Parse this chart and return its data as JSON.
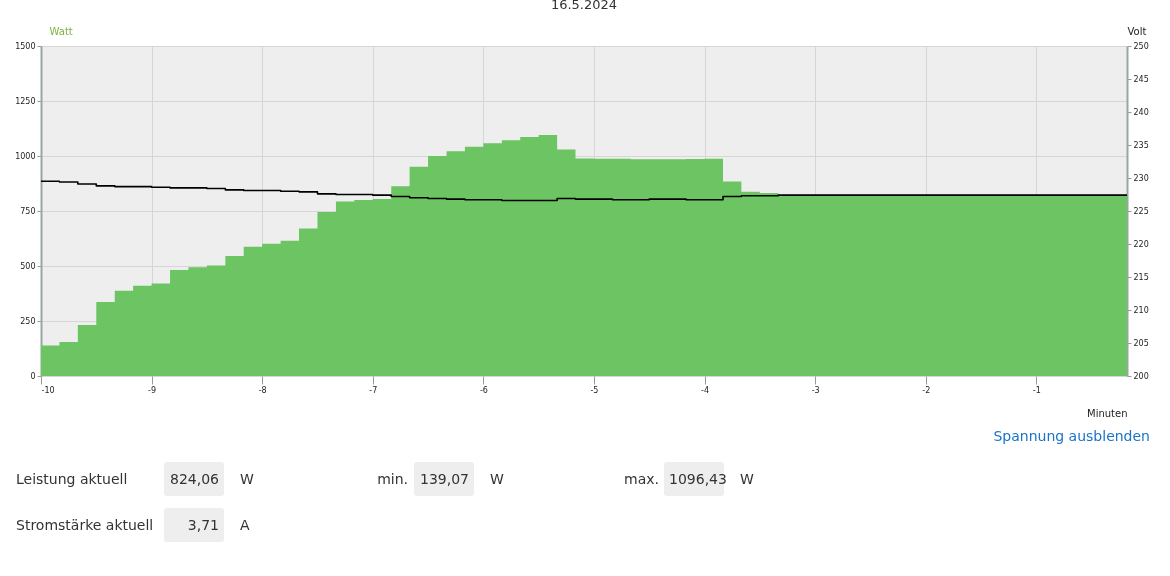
{
  "chart_data": {
    "type": "area",
    "title": "16.5.2024",
    "xlabel": "Minuten",
    "ylabel": "Watt",
    "y2label": "Volt",
    "x": [
      -10,
      -9.833,
      -9.667,
      -9.5,
      -9.333,
      -9.167,
      -9,
      -8.833,
      -8.667,
      -8.5,
      -8.333,
      -8.167,
      -8,
      -7.833,
      -7.667,
      -7.5,
      -7.333,
      -7.167,
      -7,
      -6.833,
      -6.667,
      -6.5,
      -6.333,
      -6.167,
      -6,
      -5.833,
      -5.667,
      -5.5,
      -5.333,
      -5.167,
      -5,
      -4.833,
      -4.667,
      -4.5,
      -4.333,
      -4.167,
      -4,
      -3.833,
      -3.667,
      -3.5,
      -3.333,
      -3.167,
      -3,
      -2.833,
      -2.667,
      -2.5,
      -2.333,
      -2.167,
      -2,
      -1.833,
      -1.667,
      -1.5,
      -1.333,
      -1.167,
      -1,
      -0.833,
      -0.667,
      -0.5,
      -0.333,
      -0.18
    ],
    "series": [
      {
        "color": "#6cc462",
        "values": [
          139,
          155,
          232,
          336,
          388,
          410,
          421,
          482,
          494,
          502,
          545,
          588,
          601,
          615,
          670,
          745,
          793,
          800,
          804,
          862,
          951,
          1000,
          1022,
          1042,
          1058,
          1072,
          1086,
          1096,
          1030,
          989,
          988,
          987,
          985,
          985,
          985,
          986,
          987,
          884,
          837,
          832,
          824,
          824,
          824,
          824,
          824,
          824,
          824,
          824,
          824,
          824,
          824,
          824,
          824,
          824,
          824,
          824,
          824,
          824,
          824,
          824
        ]
      },
      {
        "type": "step",
        "axis": "y2",
        "color": "#000000",
        "values": [
          229.5,
          229.4,
          229.1,
          228.8,
          228.7,
          228.7,
          228.6,
          228.5,
          228.5,
          228.4,
          228.2,
          228.1,
          228.1,
          228.0,
          227.9,
          227.6,
          227.5,
          227.5,
          227.4,
          227.2,
          227.0,
          226.9,
          226.8,
          226.7,
          226.7,
          226.6,
          226.6,
          226.6,
          226.9,
          226.8,
          226.8,
          226.7,
          226.7,
          226.8,
          226.8,
          226.7,
          226.7,
          227.2,
          227.3,
          227.3,
          227.4,
          227.4,
          227.4,
          227.4,
          227.4,
          227.4,
          227.4,
          227.4,
          227.4,
          227.4,
          227.4,
          227.4,
          227.4,
          227.4,
          227.4,
          227.4,
          227.4,
          227.4,
          227.4,
          227.4
        ]
      }
    ],
    "xlim": [
      -10,
      -0.18
    ],
    "xticks": [
      -10,
      -9,
      -8,
      -7,
      -6,
      -5,
      -4,
      -3,
      -2,
      -1
    ],
    "ylim": [
      0,
      1500
    ],
    "yticks": [
      0,
      250,
      500,
      750,
      1000,
      1250,
      1500
    ],
    "y2lim": [
      200,
      250
    ],
    "y2ticks": [
      200,
      205,
      210,
      215,
      220,
      225,
      230,
      235,
      240,
      245,
      250
    ],
    "grid": true,
    "annotations": [
      "Spannung ausblenden",
      "Leistung aktuell",
      "824,06",
      "W",
      "min.",
      "139,07",
      "W",
      "max.",
      "1096,43",
      "W",
      "Stromstärke aktuell",
      "3,71",
      "A"
    ]
  }
}
